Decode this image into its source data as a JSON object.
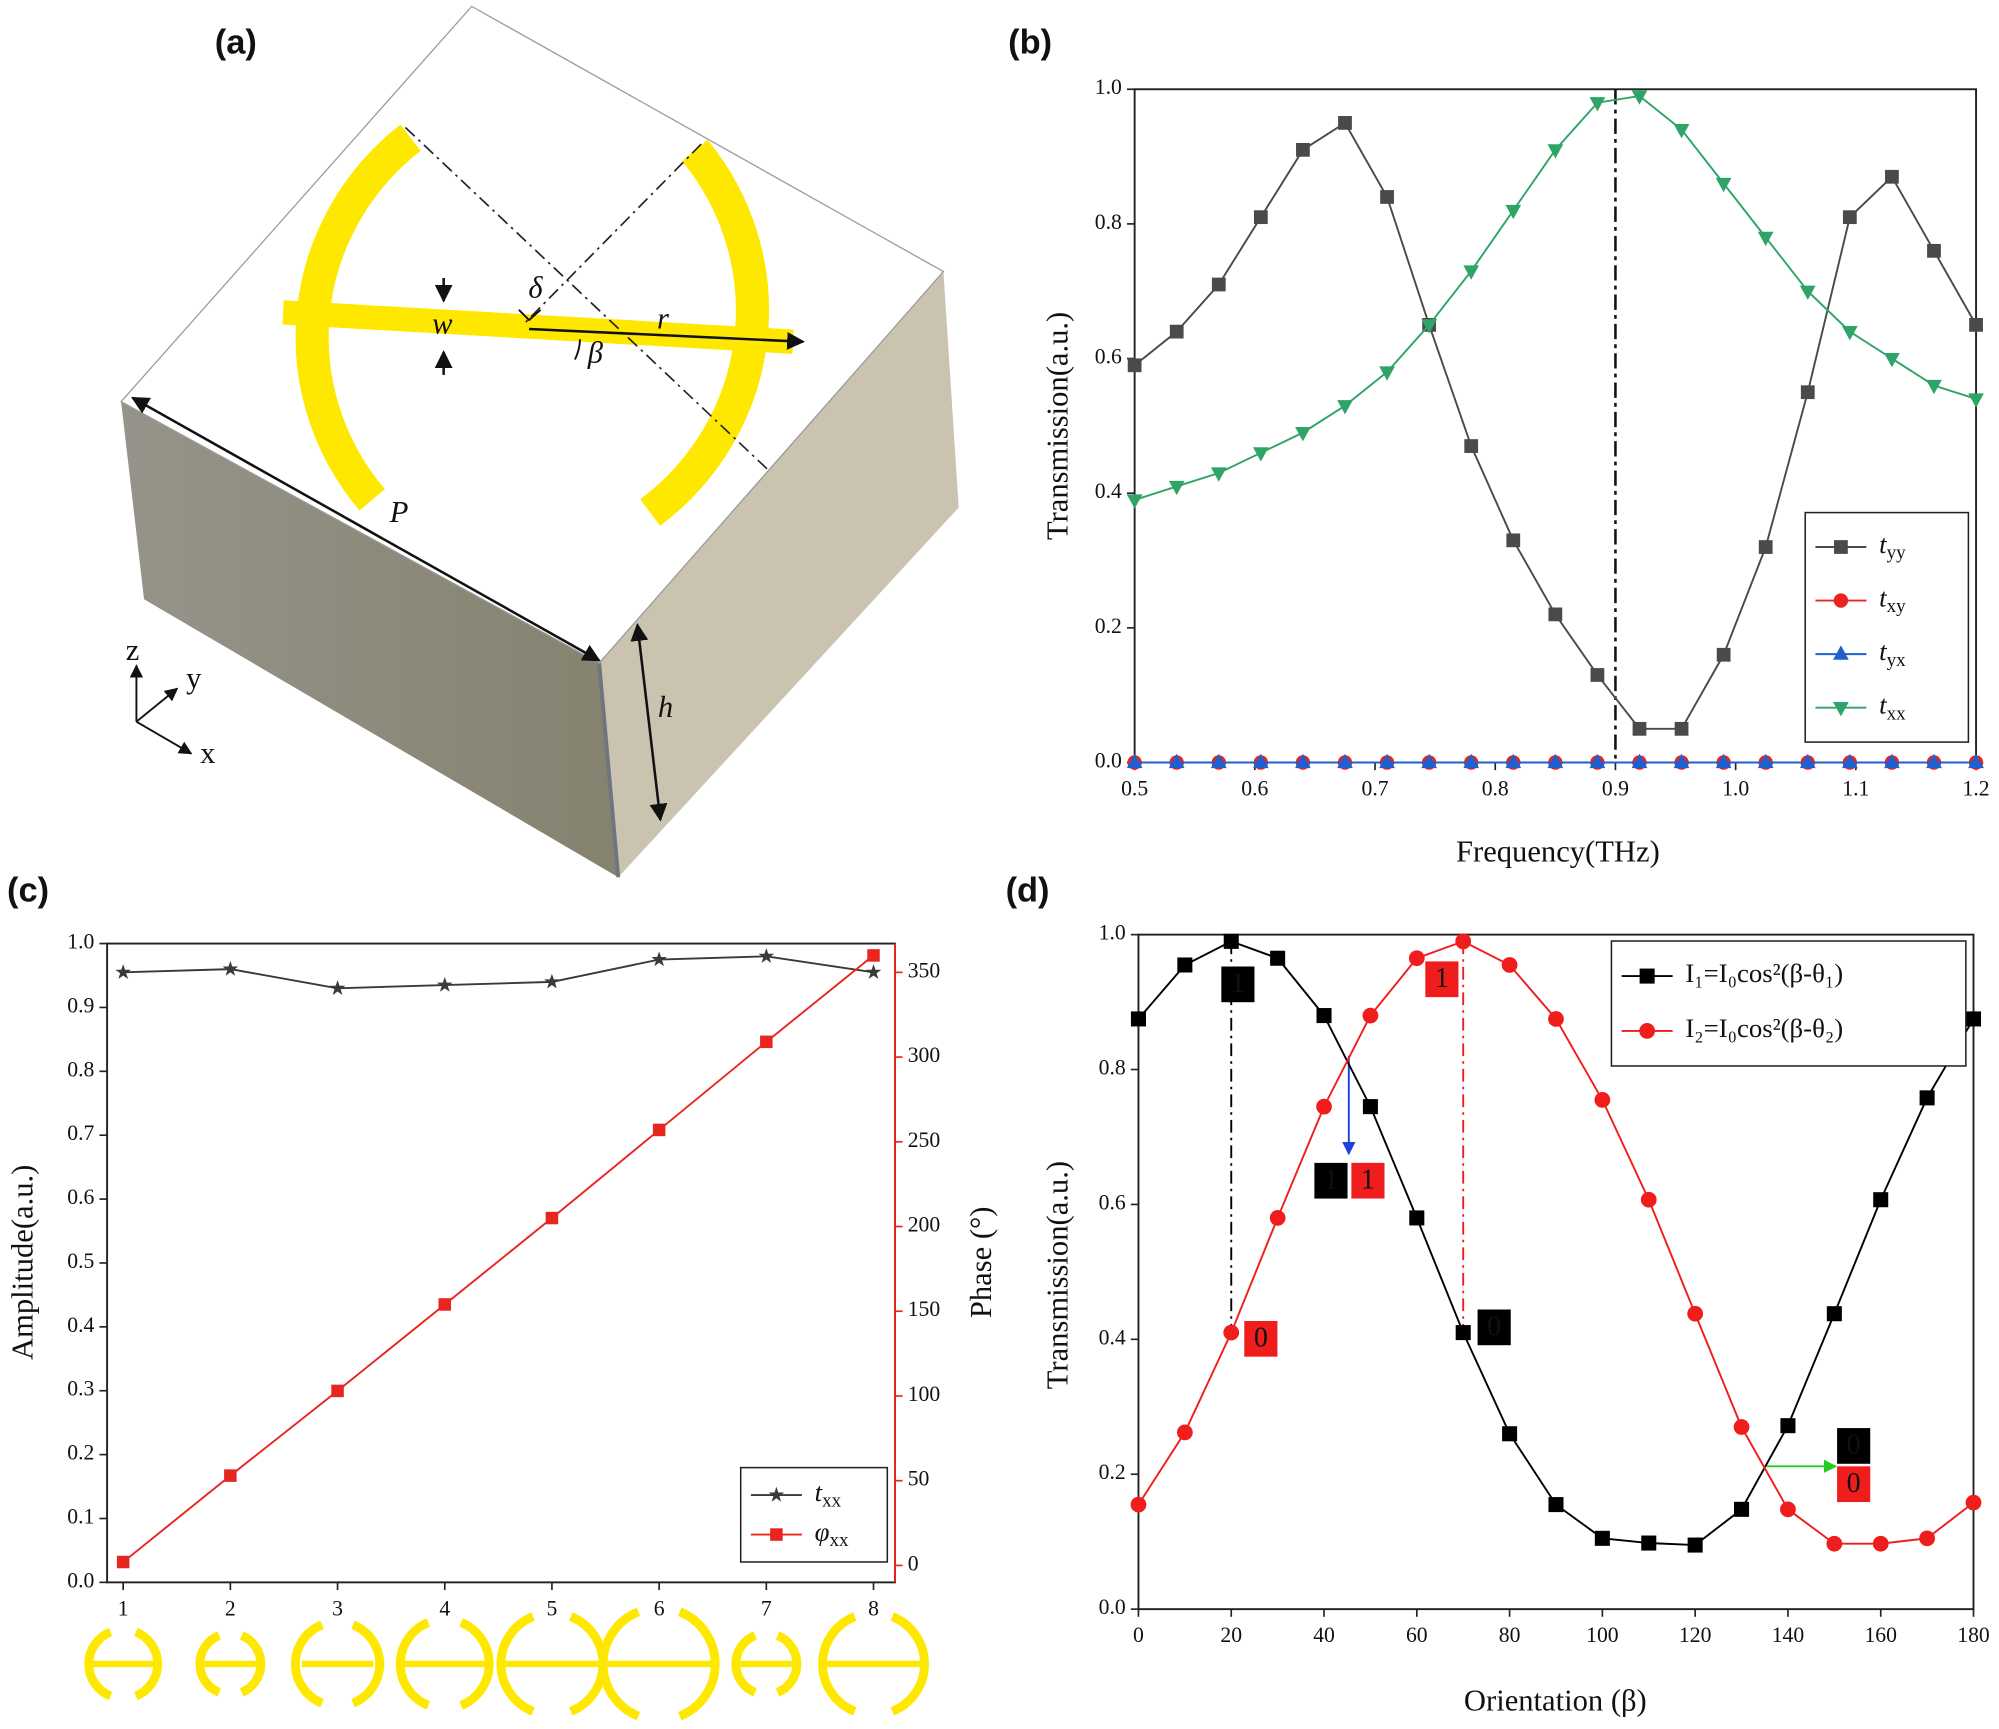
{
  "diagram": {
    "label": "(a)",
    "symbols": {
      "delta": "δ",
      "w": "w",
      "r": "r",
      "beta": "β",
      "P": "P",
      "h": "h"
    },
    "axes": [
      "z",
      "y",
      "x"
    ]
  },
  "chart_data": [
    {
      "type": "line",
      "label": "(b)",
      "xlabel": "Frequency(THz)",
      "ylabel": "Transmission(a.u.)",
      "x": [
        0.5,
        0.535,
        0.57,
        0.605,
        0.64,
        0.675,
        0.71,
        0.745,
        0.78,
        0.815,
        0.85,
        0.885,
        0.92,
        0.955,
        0.99,
        1.025,
        1.06,
        1.095,
        1.13,
        1.165,
        1.2
      ],
      "xlim": [
        0.5,
        1.2
      ],
      "xticks": [
        0.5,
        0.6,
        0.7,
        0.8,
        0.9,
        {
          "value": 1,
          "label": "1.0"
        },
        1.1,
        1.2
      ],
      "ylim": [
        0,
        1
      ],
      "yticks": [
        {
          "value": 0,
          "label": "0.0"
        },
        0.2,
        0.4,
        0.6,
        0.8,
        {
          "value": 1,
          "label": "1.0"
        }
      ],
      "vline": 0.9,
      "legend": "lower right",
      "series": [
        {
          "name": "tyy",
          "color": "#4a4a4a",
          "marker": "square",
          "values": [
            0.59,
            0.64,
            0.71,
            0.81,
            0.91,
            0.95,
            0.84,
            0.65,
            0.47,
            0.33,
            0.22,
            0.13,
            0.05,
            0.05,
            0.16,
            0.32,
            0.55,
            0.81,
            0.87,
            0.76,
            0.65
          ]
        },
        {
          "name": "txy",
          "color": "#e8251f",
          "marker": "circle",
          "values": [
            0,
            0,
            0,
            0,
            0,
            0,
            0,
            0,
            0,
            0,
            0,
            0,
            0,
            0,
            0,
            0,
            0,
            0,
            0,
            0,
            0
          ]
        },
        {
          "name": "tyx",
          "color": "#1f5fcf",
          "marker": "triangle-up",
          "values": [
            0,
            0,
            0,
            0,
            0,
            0,
            0,
            0,
            0,
            0,
            0,
            0,
            0,
            0,
            0,
            0,
            0,
            0,
            0,
            0,
            0
          ]
        },
        {
          "name": "txx",
          "color": "#2ea566",
          "marker": "triangle-down",
          "values": [
            0.39,
            0.41,
            0.43,
            0.46,
            0.49,
            0.53,
            0.58,
            0.65,
            0.73,
            0.82,
            0.91,
            0.98,
            0.99,
            0.94,
            0.86,
            0.78,
            0.7,
            0.64,
            0.6,
            0.56,
            0.54
          ]
        }
      ]
    },
    {
      "type": "line",
      "label": "(c)",
      "ylabel": "Amplitude(a.u.)",
      "y2label": "Phase (°)",
      "x": [
        1,
        2,
        3,
        4,
        5,
        6,
        7,
        8
      ],
      "xlim": [
        0.85,
        8.2
      ],
      "xticks": [
        1,
        2,
        3,
        4,
        5,
        6,
        7,
        8
      ],
      "ylim": [
        0,
        1
      ],
      "yticks": [
        {
          "value": 0,
          "label": "0.0"
        },
        0.1,
        0.2,
        0.3,
        0.4,
        0.5,
        0.6,
        0.7,
        0.8,
        0.9,
        {
          "value": 1,
          "label": "1.0"
        }
      ],
      "y2lim": [
        -10,
        367
      ],
      "y2ticks": [
        0,
        50,
        100,
        150,
        200,
        250,
        300,
        350
      ],
      "legend": "lower right",
      "series": [
        {
          "name": "txx",
          "color": "#3a3a3a",
          "marker": "star",
          "values": [
            0.955,
            0.96,
            0.93,
            0.935,
            0.94,
            0.975,
            0.98,
            0.955
          ]
        },
        {
          "name": "φxx",
          "color": "#e8251f",
          "marker": "square",
          "axis": "y2",
          "values": [
            2,
            53,
            103,
            154,
            205,
            257,
            309,
            360
          ]
        }
      ]
    },
    {
      "type": "line",
      "label": "(d)",
      "xlabel": "Orientation (β)",
      "ylabel": "Transmission(a.u.)",
      "x": [
        0,
        10,
        20,
        30,
        40,
        50,
        60,
        70,
        80,
        90,
        100,
        110,
        120,
        130,
        140,
        150,
        160,
        170,
        180
      ],
      "xlim": [
        0,
        180
      ],
      "xticks": [
        0,
        20,
        40,
        60,
        80,
        100,
        120,
        140,
        160,
        180
      ],
      "ylim": [
        0,
        1
      ],
      "yticks": [
        {
          "value": 0,
          "label": "0.0"
        },
        0.2,
        0.4,
        0.6,
        0.8,
        {
          "value": 1,
          "label": "1.0"
        }
      ],
      "vlines": [
        20,
        70
      ],
      "legend": "upper right",
      "series": [
        {
          "name": "I₁=I₀cos²(β-θ₁)",
          "color": "#000000",
          "marker": "square",
          "values": [
            0.875,
            0.955,
            0.99,
            0.965,
            0.88,
            0.745,
            0.58,
            0.41,
            0.26,
            0.155,
            0.105,
            0.098,
            0.095,
            0.148,
            0.272,
            0.438,
            0.607,
            0.758,
            0.875
          ]
        },
        {
          "name": "I₂=I₀cos²(β-θ₂)",
          "color": "#f01d1d",
          "marker": "circle",
          "values": [
            0.155,
            0.262,
            0.41,
            0.58,
            0.745,
            0.88,
            0.965,
            0.99,
            0.955,
            0.875,
            0.755,
            0.607,
            0.438,
            0.27,
            0.148,
            0.097,
            0.097,
            0.105,
            0.158
          ]
        }
      ],
      "annotations": [
        {
          "text": "1",
          "color": "#000000"
        },
        {
          "text": "1",
          "color": "#f01d1d"
        },
        {
          "text": "1",
          "color": "#000000"
        },
        {
          "text": "1",
          "color": "#f01d1d"
        },
        {
          "text": "0",
          "color": "#f01d1d"
        },
        {
          "text": "0",
          "color": "#000000"
        },
        {
          "text": "0",
          "color": "#000000"
        },
        {
          "text": "0",
          "color": "#f01d1d"
        }
      ]
    }
  ]
}
